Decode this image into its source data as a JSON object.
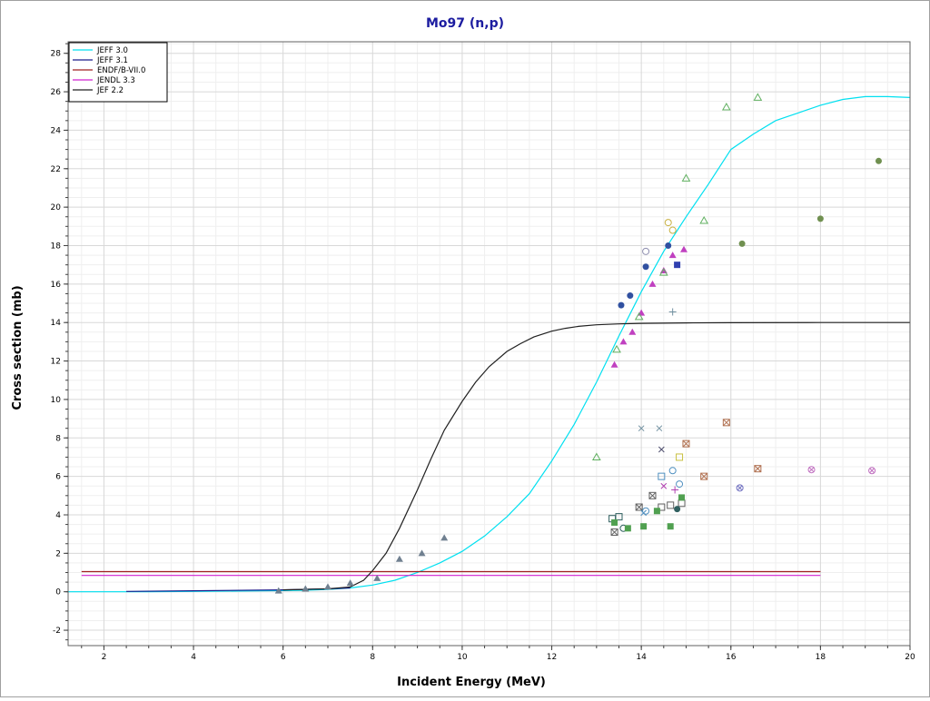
{
  "chart_data": {
    "type": "line",
    "title": "Mo97 (n,p)",
    "xlabel": "Incident Energy (MeV)",
    "ylabel": "Cross section (mb)",
    "xlim": [
      1.2,
      20
    ],
    "ylim": [
      -2.8,
      28.6
    ],
    "x_ticks": [
      2,
      4,
      6,
      8,
      10,
      12,
      14,
      16,
      18,
      20
    ],
    "y_ticks": [
      -2,
      0,
      2,
      4,
      6,
      8,
      10,
      12,
      14,
      16,
      18,
      20,
      22,
      24,
      26,
      28
    ],
    "grid": true,
    "legend_position": "top-left",
    "colors": {
      "title": "#1c1ca0",
      "jeff30": "#00e0f0",
      "jeff31": "#1c1c8c",
      "endf": "#a02020",
      "jendl": "#d020d0",
      "jef22": "#202020",
      "grid_major": "#d8d8d8",
      "grid_minor": "#efefef"
    },
    "series": [
      {
        "name": "JEFF 3.0",
        "color": "#00e0f0",
        "x": [
          1.2,
          2,
          3,
          4,
          5,
          6,
          6.5,
          7,
          7.5,
          8,
          8.5,
          9,
          9.5,
          10,
          10.5,
          11,
          11.5,
          12,
          12.5,
          13,
          13.5,
          14,
          14.5,
          15,
          15.5,
          16,
          16.5,
          17,
          17.5,
          18,
          18.5,
          19,
          19.5,
          20
        ],
        "y": [
          0,
          0,
          0,
          0.02,
          0.04,
          0.06,
          0.08,
          0.12,
          0.2,
          0.35,
          0.6,
          1.0,
          1.5,
          2.1,
          2.9,
          3.9,
          5.1,
          6.8,
          8.7,
          10.9,
          13.3,
          15.6,
          17.7,
          19.5,
          21.2,
          23.0,
          23.8,
          24.5,
          24.9,
          25.3,
          25.6,
          25.75,
          25.75,
          25.7
        ]
      },
      {
        "name": "JEFF 3.1",
        "color": "#1c1c8c",
        "x": [
          2.5,
          4,
          6,
          7,
          7.5
        ],
        "y": [
          0.02,
          0.05,
          0.1,
          0.15,
          0.2
        ]
      },
      {
        "name": "ENDF/B-VII.0",
        "color": "#a02020",
        "x": [
          1.5,
          18
        ],
        "y": [
          1.05,
          1.05
        ]
      },
      {
        "name": "JENDL 3.3",
        "color": "#d020d0",
        "x": [
          1.5,
          18
        ],
        "y": [
          0.85,
          0.85
        ]
      },
      {
        "name": "JEF 2.2",
        "color": "#202020",
        "x": [
          6,
          7,
          7.5,
          7.8,
          8,
          8.3,
          8.6,
          9,
          9.3,
          9.6,
          10,
          10.3,
          10.6,
          11,
          11.3,
          11.6,
          12,
          12.3,
          12.6,
          13,
          13.5,
          14,
          15,
          16,
          18,
          20
        ],
        "y": [
          0.1,
          0.15,
          0.25,
          0.6,
          1.1,
          2.0,
          3.3,
          5.3,
          6.9,
          8.4,
          9.9,
          10.9,
          11.7,
          12.5,
          12.9,
          13.25,
          13.55,
          13.7,
          13.8,
          13.88,
          13.93,
          13.96,
          13.98,
          13.99,
          14.0,
          14.0
        ]
      }
    ],
    "experimental_points": [
      {
        "x": 5.9,
        "y": 0.05,
        "marker": "tri-filled",
        "color": "#708090"
      },
      {
        "x": 6.5,
        "y": 0.15,
        "marker": "tri-filled",
        "color": "#708090"
      },
      {
        "x": 7.0,
        "y": 0.25,
        "marker": "tri-filled",
        "color": "#708090"
      },
      {
        "x": 7.5,
        "y": 0.45,
        "marker": "tri-filled",
        "color": "#708090"
      },
      {
        "x": 8.1,
        "y": 0.7,
        "marker": "tri-filled",
        "color": "#708090"
      },
      {
        "x": 8.6,
        "y": 1.7,
        "marker": "tri-filled",
        "color": "#708090"
      },
      {
        "x": 9.1,
        "y": 2.0,
        "marker": "tri-filled",
        "color": "#708090"
      },
      {
        "x": 9.6,
        "y": 2.8,
        "marker": "tri-filled",
        "color": "#708090"
      },
      {
        "x": 13.4,
        "y": 11.8,
        "marker": "tri-filled",
        "color": "#c040c0"
      },
      {
        "x": 13.6,
        "y": 13.0,
        "marker": "tri-filled",
        "color": "#c040c0"
      },
      {
        "x": 13.8,
        "y": 13.5,
        "marker": "tri-filled",
        "color": "#c040c0"
      },
      {
        "x": 14.0,
        "y": 14.5,
        "marker": "tri-filled",
        "color": "#c040c0"
      },
      {
        "x": 14.25,
        "y": 16.0,
        "marker": "tri-filled",
        "color": "#c040c0"
      },
      {
        "x": 14.5,
        "y": 16.7,
        "marker": "tri-filled",
        "color": "#c040c0"
      },
      {
        "x": 14.7,
        "y": 17.5,
        "marker": "tri-filled",
        "color": "#c040c0"
      },
      {
        "x": 14.95,
        "y": 17.8,
        "marker": "tri-filled",
        "color": "#c040c0"
      },
      {
        "x": 13.55,
        "y": 14.9,
        "marker": "circle-filled",
        "color": "#3050a0"
      },
      {
        "x": 13.75,
        "y": 15.4,
        "marker": "circle-filled",
        "color": "#3050a0"
      },
      {
        "x": 14.1,
        "y": 16.9,
        "marker": "circle-filled",
        "color": "#3050a0"
      },
      {
        "x": 14.6,
        "y": 18.0,
        "marker": "circle-filled",
        "color": "#3050a0"
      },
      {
        "x": 14.8,
        "y": 17.0,
        "marker": "square-filled",
        "color": "#3040b0"
      },
      {
        "x": 14.1,
        "y": 17.7,
        "marker": "circle-open",
        "color": "#9090b0"
      },
      {
        "x": 14.6,
        "y": 19.2,
        "marker": "circle-open",
        "color": "#c8b040"
      },
      {
        "x": 14.7,
        "y": 18.8,
        "marker": "circle-open",
        "color": "#c8b040"
      },
      {
        "x": 13.0,
        "y": 7.0,
        "marker": "tri-open",
        "color": "#60b060"
      },
      {
        "x": 13.45,
        "y": 12.6,
        "marker": "tri-open",
        "color": "#60b060"
      },
      {
        "x": 13.95,
        "y": 14.3,
        "marker": "tri-open",
        "color": "#60b060"
      },
      {
        "x": 14.5,
        "y": 16.6,
        "marker": "tri-open",
        "color": "#60b060"
      },
      {
        "x": 15.0,
        "y": 21.5,
        "marker": "tri-open",
        "color": "#60b060"
      },
      {
        "x": 15.4,
        "y": 19.3,
        "marker": "tri-open",
        "color": "#60b060"
      },
      {
        "x": 15.9,
        "y": 25.2,
        "marker": "tri-open",
        "color": "#60b060"
      },
      {
        "x": 16.6,
        "y": 25.7,
        "marker": "tri-open",
        "color": "#60b060"
      },
      {
        "x": 16.25,
        "y": 18.1,
        "marker": "circle-filled",
        "color": "#709050"
      },
      {
        "x": 18.0,
        "y": 19.4,
        "marker": "circle-filled",
        "color": "#709050"
      },
      {
        "x": 19.3,
        "y": 22.4,
        "marker": "circle-filled",
        "color": "#709050"
      },
      {
        "x": 14.7,
        "y": 14.55,
        "marker": "plus",
        "color": "#7090a0"
      },
      {
        "x": 14.0,
        "y": 8.5,
        "marker": "cross",
        "color": "#7090a0"
      },
      {
        "x": 14.4,
        "y": 8.5,
        "marker": "cross",
        "color": "#7090a0"
      },
      {
        "x": 14.45,
        "y": 7.4,
        "marker": "cross",
        "color": "#505070"
      },
      {
        "x": 15.9,
        "y": 8.8,
        "marker": "square-x",
        "color": "#b07050"
      },
      {
        "x": 15.0,
        "y": 7.7,
        "marker": "square-x",
        "color": "#b07050"
      },
      {
        "x": 14.85,
        "y": 7.0,
        "marker": "square-open",
        "color": "#c8c040"
      },
      {
        "x": 15.4,
        "y": 6.0,
        "marker": "square-x",
        "color": "#b07050"
      },
      {
        "x": 16.6,
        "y": 6.4,
        "marker": "square-x",
        "color": "#b07050"
      },
      {
        "x": 17.8,
        "y": 6.35,
        "marker": "circle-x",
        "color": "#c070c0"
      },
      {
        "x": 19.15,
        "y": 6.3,
        "marker": "circle-x",
        "color": "#c070c0"
      },
      {
        "x": 16.2,
        "y": 5.4,
        "marker": "circle-x",
        "color": "#7070c0"
      },
      {
        "x": 14.45,
        "y": 6.0,
        "marker": "square-open",
        "color": "#5090c0"
      },
      {
        "x": 14.7,
        "y": 6.3,
        "marker": "circle-open",
        "color": "#5090c0"
      },
      {
        "x": 14.5,
        "y": 5.5,
        "marker": "cross",
        "color": "#b040b0"
      },
      {
        "x": 14.75,
        "y": 5.3,
        "marker": "plus",
        "color": "#b040b0"
      },
      {
        "x": 14.85,
        "y": 5.6,
        "marker": "circle-open",
        "color": "#5090c0"
      },
      {
        "x": 14.25,
        "y": 5.0,
        "marker": "square-x",
        "color": "#606060"
      },
      {
        "x": 13.95,
        "y": 4.4,
        "marker": "square-x",
        "color": "#606060"
      },
      {
        "x": 14.1,
        "y": 4.2,
        "marker": "circle-open",
        "color": "#5090c0"
      },
      {
        "x": 14.05,
        "y": 4.1,
        "marker": "cross",
        "color": "#5090c0"
      },
      {
        "x": 14.45,
        "y": 4.4,
        "marker": "square-open",
        "color": "#606060"
      },
      {
        "x": 14.65,
        "y": 4.5,
        "marker": "square-open",
        "color": "#606060"
      },
      {
        "x": 14.9,
        "y": 4.6,
        "marker": "square-open",
        "color": "#606060"
      },
      {
        "x": 14.8,
        "y": 4.3,
        "marker": "circle-filled",
        "color": "#306060"
      },
      {
        "x": 13.35,
        "y": 3.8,
        "marker": "square-open",
        "color": "#306060"
      },
      {
        "x": 13.5,
        "y": 3.9,
        "marker": "square-open",
        "color": "#306060"
      },
      {
        "x": 13.6,
        "y": 3.3,
        "marker": "circle-open",
        "color": "#306060"
      },
      {
        "x": 13.4,
        "y": 3.1,
        "marker": "square-x",
        "color": "#606060"
      },
      {
        "x": 13.4,
        "y": 3.6,
        "marker": "square-filled",
        "color": "#50a050"
      },
      {
        "x": 13.7,
        "y": 3.3,
        "marker": "square-filled",
        "color": "#50a050"
      },
      {
        "x": 14.05,
        "y": 3.4,
        "marker": "square-filled",
        "color": "#50a050"
      },
      {
        "x": 14.35,
        "y": 4.2,
        "marker": "square-filled",
        "color": "#50a050"
      },
      {
        "x": 14.65,
        "y": 3.4,
        "marker": "square-filled",
        "color": "#50a050"
      },
      {
        "x": 14.9,
        "y": 4.9,
        "marker": "square-filled",
        "color": "#50a050"
      }
    ]
  }
}
